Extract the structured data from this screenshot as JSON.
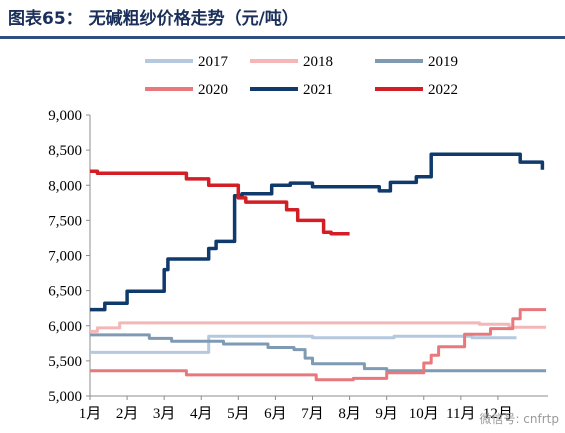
{
  "figure": {
    "title": "图表65：  无碱粗纱价格走势（元/吨）",
    "watermark": "微信号: cnfrtp"
  },
  "chart_data": {
    "type": "line",
    "title": "",
    "xlabel": "",
    "ylabel": "",
    "ylim": [
      5000,
      9000
    ],
    "yticks": [
      5000,
      5500,
      6000,
      6500,
      7000,
      7500,
      8000,
      8500,
      9000
    ],
    "ytick_labels": [
      "5,000",
      "5,500",
      "6,000",
      "6,500",
      "7,000",
      "7,500",
      "8,000",
      "8,500",
      "9,000"
    ],
    "xlim": [
      1,
      13.35
    ],
    "x_tick_labels": [
      "1月",
      "2月",
      "3月",
      "4月",
      "5月",
      "6月",
      "7月",
      "8月",
      "9月",
      "10月",
      "11月",
      "12月"
    ],
    "grid": false,
    "legend_position": "top",
    "series": [
      {
        "name": "2017",
        "color": "#b4c8de",
        "width": 3,
        "points": [
          [
            1.0,
            5620
          ],
          [
            4.2,
            5620
          ],
          [
            4.2,
            5850
          ],
          [
            7.0,
            5850
          ],
          [
            7.0,
            5830
          ],
          [
            9.2,
            5830
          ],
          [
            9.2,
            5850
          ],
          [
            11.3,
            5850
          ],
          [
            11.3,
            5830
          ],
          [
            12.5,
            5830
          ]
        ]
      },
      {
        "name": "2018",
        "color": "#f4b6b6",
        "width": 3,
        "points": [
          [
            1.0,
            5920
          ],
          [
            1.2,
            5920
          ],
          [
            1.2,
            5970
          ],
          [
            1.8,
            5970
          ],
          [
            1.8,
            6040
          ],
          [
            11.5,
            6040
          ],
          [
            11.5,
            6020
          ],
          [
            12.3,
            6020
          ],
          [
            12.3,
            5980
          ],
          [
            13.3,
            5980
          ]
        ]
      },
      {
        "name": "2019",
        "color": "#7f9bb4",
        "width": 3,
        "points": [
          [
            1.0,
            5870
          ],
          [
            2.6,
            5870
          ],
          [
            2.6,
            5820
          ],
          [
            3.2,
            5820
          ],
          [
            3.2,
            5780
          ],
          [
            4.6,
            5780
          ],
          [
            4.6,
            5740
          ],
          [
            5.8,
            5740
          ],
          [
            5.8,
            5690
          ],
          [
            6.5,
            5690
          ],
          [
            6.5,
            5660
          ],
          [
            6.8,
            5660
          ],
          [
            6.8,
            5540
          ],
          [
            7.0,
            5540
          ],
          [
            7.0,
            5460
          ],
          [
            8.4,
            5460
          ],
          [
            8.4,
            5390
          ],
          [
            9.0,
            5390
          ],
          [
            9.0,
            5360
          ],
          [
            13.3,
            5360
          ]
        ]
      },
      {
        "name": "2020",
        "color": "#e8787c",
        "width": 3,
        "points": [
          [
            1.0,
            5360
          ],
          [
            3.6,
            5360
          ],
          [
            3.6,
            5300
          ],
          [
            7.1,
            5300
          ],
          [
            7.1,
            5230
          ],
          [
            8.1,
            5230
          ],
          [
            8.1,
            5250
          ],
          [
            9.0,
            5250
          ],
          [
            9.0,
            5330
          ],
          [
            10.0,
            5330
          ],
          [
            10.0,
            5470
          ],
          [
            10.2,
            5470
          ],
          [
            10.2,
            5580
          ],
          [
            10.4,
            5580
          ],
          [
            10.4,
            5700
          ],
          [
            11.1,
            5700
          ],
          [
            11.1,
            5880
          ],
          [
            11.8,
            5880
          ],
          [
            11.8,
            5960
          ],
          [
            12.4,
            5960
          ],
          [
            12.4,
            6100
          ],
          [
            12.6,
            6100
          ],
          [
            12.6,
            6230
          ],
          [
            13.3,
            6230
          ]
        ]
      },
      {
        "name": "2021",
        "color": "#0f3a6b",
        "width": 3.5,
        "points": [
          [
            1.0,
            6230
          ],
          [
            1.4,
            6230
          ],
          [
            1.4,
            6320
          ],
          [
            2.0,
            6320
          ],
          [
            2.0,
            6490
          ],
          [
            3.0,
            6490
          ],
          [
            3.0,
            6800
          ],
          [
            3.1,
            6800
          ],
          [
            3.1,
            6950
          ],
          [
            4.2,
            6950
          ],
          [
            4.2,
            7100
          ],
          [
            4.4,
            7100
          ],
          [
            4.4,
            7200
          ],
          [
            4.9,
            7200
          ],
          [
            4.9,
            7850
          ],
          [
            5.1,
            7850
          ],
          [
            5.1,
            7880
          ],
          [
            5.9,
            7880
          ],
          [
            5.9,
            8000
          ],
          [
            6.4,
            8000
          ],
          [
            6.4,
            8030
          ],
          [
            7.0,
            8030
          ],
          [
            7.0,
            7980
          ],
          [
            8.8,
            7980
          ],
          [
            8.8,
            7920
          ],
          [
            9.1,
            7920
          ],
          [
            9.1,
            8040
          ],
          [
            9.8,
            8040
          ],
          [
            9.8,
            8120
          ],
          [
            10.2,
            8120
          ],
          [
            10.2,
            8440
          ],
          [
            12.6,
            8440
          ],
          [
            12.6,
            8330
          ],
          [
            13.2,
            8330
          ],
          [
            13.2,
            8220
          ]
        ]
      },
      {
        "name": "2022",
        "color": "#d21e24",
        "width": 3.5,
        "points": [
          [
            1.0,
            8200
          ],
          [
            1.2,
            8200
          ],
          [
            1.2,
            8170
          ],
          [
            3.6,
            8170
          ],
          [
            3.6,
            8090
          ],
          [
            4.2,
            8090
          ],
          [
            4.2,
            8000
          ],
          [
            5.0,
            8000
          ],
          [
            5.0,
            7820
          ],
          [
            5.2,
            7820
          ],
          [
            5.2,
            7760
          ],
          [
            6.3,
            7760
          ],
          [
            6.3,
            7650
          ],
          [
            6.6,
            7650
          ],
          [
            6.6,
            7500
          ],
          [
            7.3,
            7500
          ],
          [
            7.3,
            7330
          ],
          [
            7.5,
            7330
          ],
          [
            7.5,
            7310
          ],
          [
            8.0,
            7310
          ]
        ]
      }
    ]
  }
}
